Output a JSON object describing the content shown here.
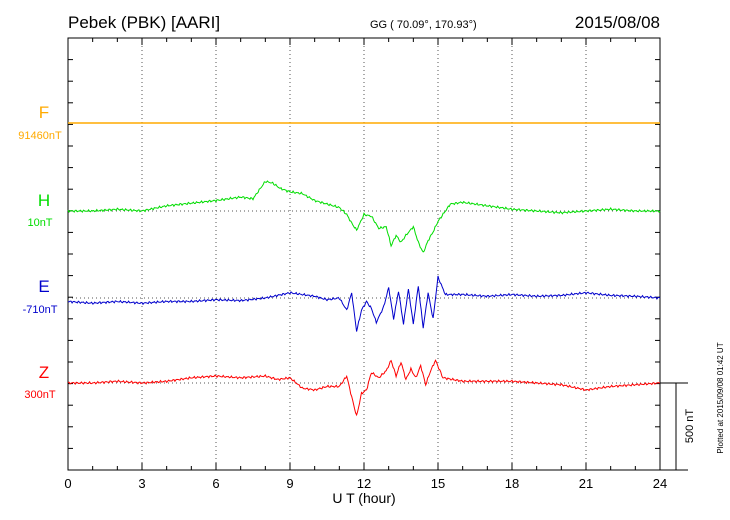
{
  "header": {
    "station": "Pebek (PBK)  [AARI]",
    "coords": "GG ( 70.09°, 170.93°)",
    "date": "2015/08/08"
  },
  "plotted_note": "Plotted at 2015/09/08 01:42 UT",
  "chart_data": {
    "type": "line",
    "title": "",
    "xlabel": "U T (hour)",
    "ylabel": "",
    "xlim": [
      0,
      24
    ],
    "xticks": [
      "0",
      "3",
      "6",
      "9",
      "12",
      "15",
      "18",
      "21",
      "24"
    ],
    "grid": true,
    "scale_bar": {
      "label": "500 nT",
      "value_nT": 500
    },
    "series": [
      {
        "name": "F",
        "baseline": "91460nT",
        "color": "#ffaa00",
        "x": [
          0,
          24
        ],
        "y": [
          0,
          0
        ]
      },
      {
        "name": "H",
        "baseline": "10nT",
        "color": "#00dd00",
        "x": [
          0,
          1,
          2,
          3,
          4,
          5,
          6,
          7,
          7.5,
          8,
          8.3,
          8.6,
          9,
          9.5,
          10,
          10.5,
          11,
          11.3,
          11.5,
          11.7,
          12,
          12.3,
          12.6,
          12.9,
          13.1,
          13.3,
          13.5,
          13.7,
          14,
          14.2,
          14.4,
          14.6,
          14.8,
          15,
          15.5,
          16,
          17,
          18,
          19,
          20,
          21,
          22,
          23,
          24
        ],
        "y": [
          0,
          0,
          10,
          0,
          30,
          45,
          60,
          80,
          70,
          170,
          160,
          130,
          110,
          100,
          60,
          40,
          20,
          -20,
          -70,
          -110,
          -20,
          -30,
          -100,
          -90,
          -200,
          -140,
          -180,
          -140,
          -90,
          -180,
          -240,
          -170,
          -120,
          -60,
          40,
          50,
          30,
          10,
          0,
          -10,
          0,
          10,
          0,
          0
        ]
      },
      {
        "name": "E",
        "baseline": "-710nT",
        "color": "#0000cc",
        "x": [
          0,
          1,
          2,
          3,
          4,
          5,
          6,
          7,
          8,
          9,
          9.5,
          10,
          10.5,
          11,
          11.3,
          11.5,
          11.7,
          11.9,
          12.1,
          12.3,
          12.5,
          12.8,
          13,
          13.2,
          13.4,
          13.6,
          13.8,
          14,
          14.2,
          14.4,
          14.6,
          14.8,
          15,
          15.3,
          16,
          17,
          18,
          19,
          20,
          21,
          22,
          23,
          24
        ],
        "y": [
          -20,
          -30,
          -20,
          -30,
          -20,
          -20,
          -10,
          -15,
          0,
          30,
          20,
          10,
          -10,
          0,
          -70,
          30,
          -190,
          -70,
          -20,
          -60,
          -140,
          -50,
          60,
          -120,
          40,
          -150,
          50,
          -150,
          70,
          -170,
          30,
          -120,
          120,
          20,
          20,
          10,
          20,
          10,
          15,
          30,
          15,
          10,
          0
        ]
      },
      {
        "name": "Z",
        "baseline": "300nT",
        "color": "#ff0000",
        "x": [
          0,
          1,
          2,
          3,
          4,
          5,
          6,
          7,
          8,
          8.5,
          9,
          9.5,
          10,
          10.5,
          11,
          11.3,
          11.5,
          11.7,
          11.9,
          12.1,
          12.3,
          12.6,
          12.9,
          13.1,
          13.3,
          13.5,
          13.7,
          13.9,
          14.1,
          14.3,
          14.5,
          14.7,
          14.9,
          15.2,
          15.6,
          16,
          17,
          18,
          19,
          20,
          21,
          22,
          23,
          24
        ],
        "y": [
          0,
          0,
          10,
          0,
          10,
          30,
          40,
          30,
          40,
          20,
          30,
          -30,
          -40,
          -20,
          -20,
          40,
          -80,
          -190,
          -60,
          -40,
          60,
          30,
          70,
          130,
          40,
          120,
          20,
          80,
          30,
          100,
          -10,
          70,
          130,
          30,
          20,
          10,
          10,
          10,
          0,
          -10,
          -40,
          -20,
          -10,
          0
        ]
      }
    ]
  }
}
